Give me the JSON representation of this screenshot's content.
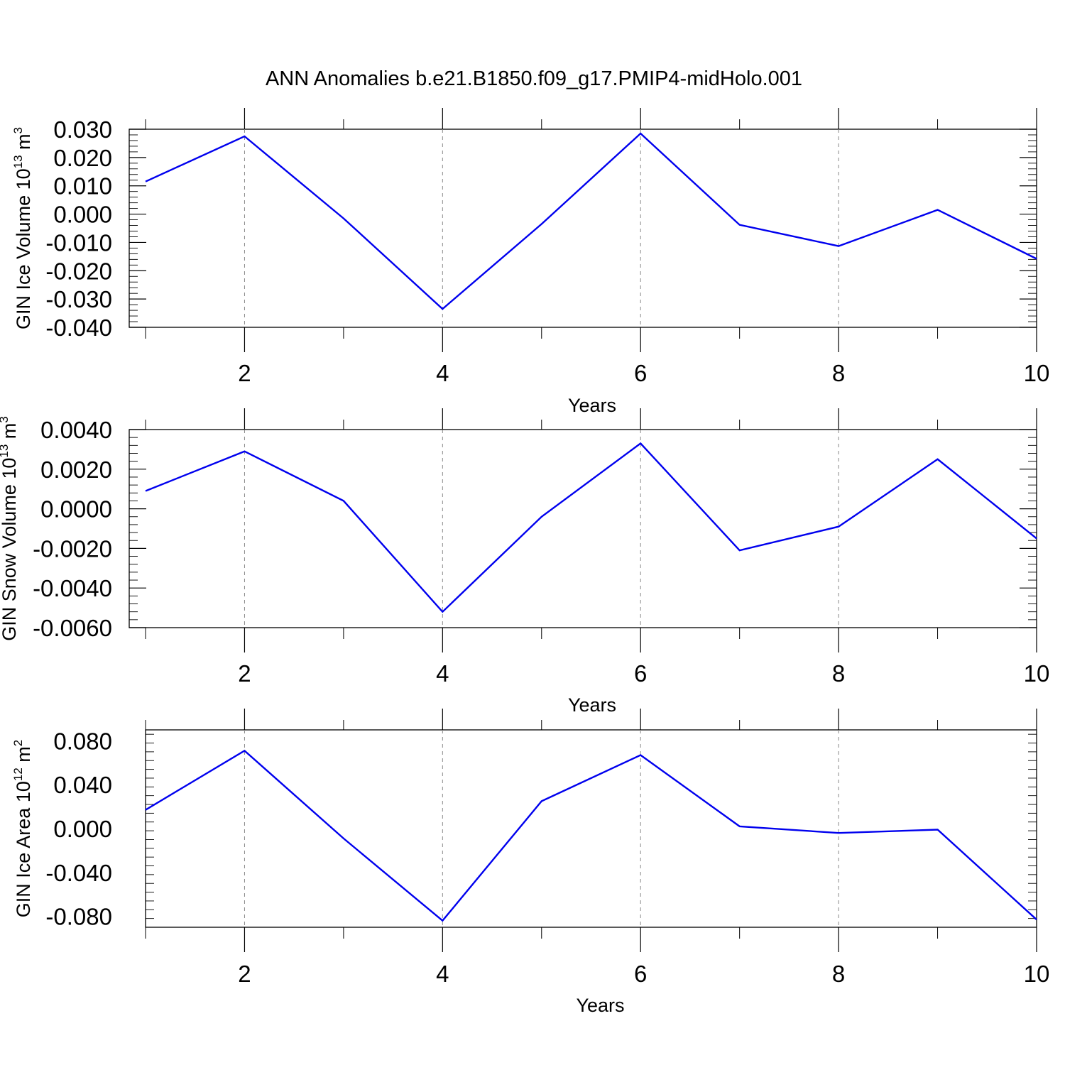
{
  "figure_title": "ANN Anomalies b.e21.B1850.f09_g17.PMIP4-midHolo.001",
  "chart_data": [
    {
      "type": "line",
      "title": "",
      "xlabel": "Years",
      "ylabel": "GIN Ice Volume 10",
      "ylabel_sup1": "13",
      "ylabel_mid": " m",
      "ylabel_sup2": "3",
      "xlim": [
        1,
        10
      ],
      "ylim": [
        -0.04,
        0.03
      ],
      "x_ticks": [
        2,
        4,
        6,
        8,
        10
      ],
      "x_tick_labels": [
        "2",
        "4",
        "6",
        "8",
        "10"
      ],
      "y_ticks": [
        0.03,
        0.02,
        0.01,
        0.0,
        -0.01,
        -0.02,
        -0.03,
        -0.04
      ],
      "y_tick_labels": [
        "0.030",
        "0.020",
        "0.010",
        "0.000",
        "-0.010",
        "-0.020",
        "-0.030",
        "-0.040"
      ],
      "grid": "x-major-dashed",
      "series": [
        {
          "color": "#0000ee",
          "x": [
            1,
            2,
            3,
            4,
            5,
            6,
            7,
            8,
            9,
            10
          ],
          "values": [
            0.0115,
            0.0275,
            -0.0015,
            -0.0335,
            -0.0035,
            0.0285,
            -0.0038,
            -0.0113,
            0.0015,
            -0.0158
          ]
        }
      ]
    },
    {
      "type": "line",
      "title": "",
      "xlabel": "Years",
      "ylabel": "GIN Snow Volume 10",
      "ylabel_sup1": "13",
      "ylabel_mid": " m",
      "ylabel_sup2": "3",
      "xlim": [
        1,
        10
      ],
      "ylim": [
        -0.006,
        0.004
      ],
      "x_ticks": [
        2,
        4,
        6,
        8,
        10
      ],
      "x_tick_labels": [
        "2",
        "4",
        "6",
        "8",
        "10"
      ],
      "y_ticks": [
        0.004,
        0.002,
        0.0,
        -0.002,
        -0.004,
        -0.006
      ],
      "y_tick_labels": [
        "0.0040",
        "0.0020",
        "0.0000",
        "-0.0020",
        "-0.0040",
        "-0.0060"
      ],
      "grid": "x-major-dashed",
      "series": [
        {
          "color": "#0000ee",
          "x": [
            1,
            2,
            3,
            4,
            5,
            6,
            7,
            8,
            9,
            10
          ],
          "values": [
            0.0009,
            0.0029,
            0.0004,
            -0.0052,
            -0.0004,
            0.0033,
            -0.0021,
            -0.0009,
            0.0025,
            -0.0015
          ]
        }
      ]
    },
    {
      "type": "line",
      "title": "",
      "xlabel": "Years",
      "ylabel": "GIN Ice Area 10",
      "ylabel_sup1": "12",
      "ylabel_mid": " m",
      "ylabel_sup2": "2",
      "xlim": [
        1,
        10
      ],
      "ylim": [
        -0.09,
        0.09
      ],
      "x_ticks": [
        2,
        4,
        6,
        8,
        10
      ],
      "x_tick_labels": [
        "2",
        "4",
        "6",
        "8",
        "10"
      ],
      "y_ticks": [
        0.08,
        0.04,
        0.0,
        -0.04,
        -0.08
      ],
      "y_tick_labels": [
        "0.080",
        "0.040",
        "0.000",
        "-0.040",
        "-0.080"
      ],
      "grid": "x-major-dashed",
      "series": [
        {
          "color": "#0000ee",
          "x": [
            1,
            2,
            3,
            4,
            5,
            6,
            7,
            8,
            9,
            10
          ],
          "values": [
            0.017,
            0.071,
            -0.009,
            -0.084,
            0.025,
            0.067,
            0.002,
            -0.004,
            -0.001,
            -0.083
          ]
        }
      ]
    }
  ]
}
